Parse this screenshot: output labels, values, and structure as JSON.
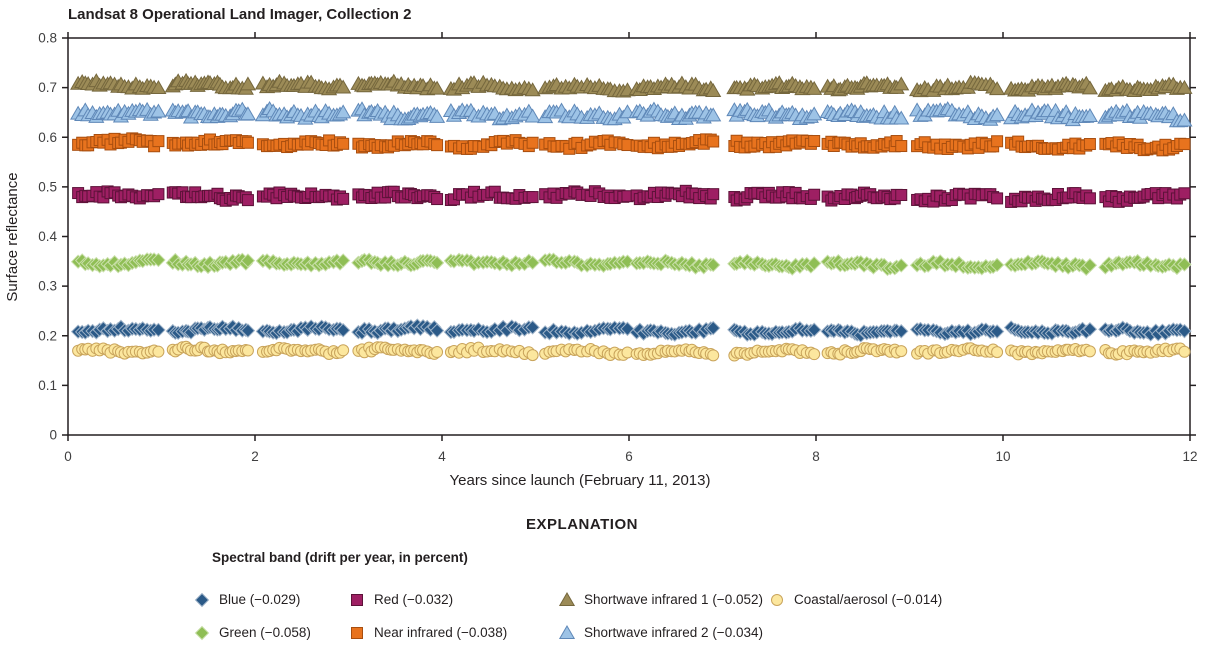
{
  "title": "Landsat 8 Operational Land Imager, Collection 2",
  "chart_data": {
    "type": "scatter",
    "title": "Landsat 8 Operational Land Imager, Collection 2",
    "xlabel": "Years since launch (February 11, 2013)",
    "ylabel": "Surface reflectance",
    "xlim": [
      0,
      12
    ],
    "ylim": [
      0,
      0.8
    ],
    "xticks": [
      0,
      2,
      4,
      6,
      8,
      10,
      12
    ],
    "yticks": [
      0,
      0.1,
      0.2,
      0.3,
      0.4,
      0.5,
      0.6,
      0.7,
      0.8
    ],
    "ytick_labels": [
      "0",
      "0.1",
      "0.2",
      "0.3",
      "0.4",
      "0.5",
      "0.6",
      "0.7",
      "0.8"
    ],
    "grid": false,
    "axis_color": "#231f20",
    "series": [
      {
        "id": "swir1",
        "name": "Shortwave infrared 1",
        "drift_per_year_pct": -0.052,
        "mean_reflectance": 0.705,
        "marker": "triangle",
        "fill": "#9C8B57",
        "stroke": "#75673D",
        "y_jitter": 0.0055
      },
      {
        "id": "swir2",
        "name": "Shortwave infrared 2",
        "drift_per_year_pct": -0.034,
        "mean_reflectance": 0.648,
        "marker": "triangle",
        "fill": "#9DC3E6",
        "stroke": "#5F88B8",
        "y_jitter": 0.0075
      },
      {
        "id": "nir",
        "name": "Near infrared",
        "drift_per_year_pct": -0.038,
        "mean_reflectance": 0.588,
        "marker": "square",
        "fill": "#E8731E",
        "stroke": "#A84E0F",
        "y_jitter": 0.006
      },
      {
        "id": "red",
        "name": "Red",
        "drift_per_year_pct": -0.032,
        "mean_reflectance": 0.483,
        "marker": "square",
        "fill": "#9E1F63",
        "stroke": "#5C1238",
        "y_jitter": 0.0065
      },
      {
        "id": "green",
        "name": "Green",
        "drift_per_year_pct": -0.058,
        "mean_reflectance": 0.349,
        "marker": "diamond",
        "fill": "#8FBE55",
        "stroke": "#C8DFA8",
        "y_jitter": 0.0045
      },
      {
        "id": "blue",
        "name": "Blue",
        "drift_per_year_pct": -0.029,
        "mean_reflectance": 0.212,
        "marker": "diamond",
        "fill": "#2B5A88",
        "stroke": "#9FB3C8",
        "y_jitter": 0.0045
      },
      {
        "id": "coastal",
        "name": "Coastal/aerosol",
        "drift_per_year_pct": -0.014,
        "mean_reflectance": 0.169,
        "marker": "circle",
        "fill": "#FCE79E",
        "stroke": "#C9A45C",
        "y_jitter": 0.0045
      }
    ],
    "scatter_gen": {
      "seed": 11,
      "points_per_year_min": 21,
      "points_per_year_max": 25,
      "cluster_start_offset": 0.08,
      "cluster_end_offset": 0.9,
      "x_jitter": 0.018,
      "wave_amp": 0.0035,
      "x_max_cap": 12.0
    }
  },
  "explanation": {
    "heading": "EXPLANATION",
    "subtitle": "Spectral band (drift per year, in percent)",
    "items": [
      {
        "label": "Blue (−0.029)",
        "marker": "diamond",
        "fill": "#2B5A88",
        "stroke": "#9FB3C8",
        "col": 0
      },
      {
        "label": "Green (−0.058)",
        "marker": "diamond",
        "fill": "#8FBE55",
        "stroke": "#C8DFA8",
        "col": 0
      },
      {
        "label": "Red (−0.032)",
        "marker": "square",
        "fill": "#9E1F63",
        "stroke": "#5C1238",
        "col": 1
      },
      {
        "label": "Near infrared (−0.038)",
        "marker": "square",
        "fill": "#E8731E",
        "stroke": "#A84E0F",
        "col": 1
      },
      {
        "label": "Shortwave infrared 1 (−0.052)",
        "marker": "triangle",
        "fill": "#9C8B57",
        "stroke": "#75673D",
        "col": 2
      },
      {
        "label": "Shortwave infrared 2 (−0.034)",
        "marker": "triangle",
        "fill": "#9DC3E6",
        "stroke": "#5F88B8",
        "col": 2
      },
      {
        "label": "Coastal/aerosol (−0.014)",
        "marker": "circle",
        "fill": "#FCE79E",
        "stroke": "#C9A45C",
        "col": 3
      }
    ]
  }
}
